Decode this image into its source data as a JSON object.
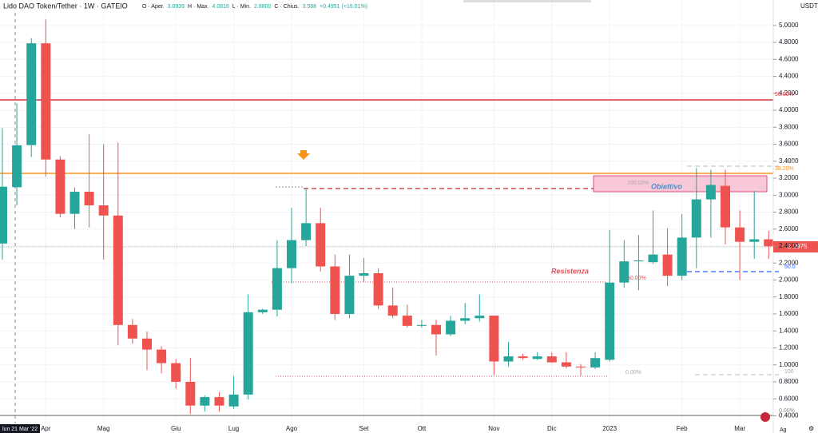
{
  "chart_data": {
    "type": "candlestick",
    "title": "Lido DAO Token/Tether · 1W · GATEIO",
    "header": {
      "open_label": "O · Aper.",
      "high_label": "H · Max.",
      "low_label": "L · Min.",
      "low_value_label": "2.8800",
      "close_label": "C · Chius.",
      "change": "+0.4951 (+16.01%)"
    },
    "y_unit": "USDT",
    "cursor_label": "lun 21 Mar '22",
    "up_color": "#26a69a",
    "down_color": "#ef5350",
    "categories": [
      null,
      null,
      null,
      "Apr",
      null,
      null,
      null,
      "Mag",
      null,
      null,
      null,
      null,
      "Giu",
      null,
      null,
      null,
      "Lug",
      null,
      null,
      null,
      "Ago",
      null,
      null,
      null,
      null,
      "Set",
      null,
      null,
      null,
      "Ott",
      null,
      null,
      null,
      null,
      "Nov",
      null,
      null,
      null,
      "Dic",
      null,
      null,
      null,
      "2023",
      null,
      null,
      null,
      null,
      "Feb",
      null,
      null,
      null,
      "Mar",
      null,
      null
    ],
    "open": [
      2.43,
      3.0939,
      3.59,
      4.79,
      3.42,
      2.78,
      3.04,
      2.88,
      2.76,
      1.47,
      1.31,
      1.18,
      1.02,
      0.8,
      0.52,
      0.62,
      0.51,
      0.65,
      1.62,
      1.65,
      2.14,
      2.47,
      2.67,
      2.16,
      1.6,
      2.05,
      2.08,
      1.7,
      1.58,
      1.46,
      1.47,
      1.36,
      1.52,
      1.55,
      1.58,
      1.04,
      1.1,
      1.07,
      1.1,
      1.03,
      0.98,
      0.97,
      1.06,
      1.97,
      2.22,
      2.21,
      2.3,
      2.05,
      2.5,
      2.95,
      3.11,
      2.62,
      2.45,
      2.48
    ],
    "high": [
      3.79,
      4.0816,
      4.85,
      5.07,
      3.46,
      3.09,
      3.72,
      3.6,
      3.62,
      1.54,
      1.39,
      1.22,
      1.07,
      1.08,
      0.64,
      0.68,
      0.87,
      1.83,
      1.66,
      2.47,
      2.85,
      3.09,
      2.85,
      2.3,
      2.3,
      2.26,
      2.14,
      1.91,
      1.71,
      1.53,
      1.53,
      1.58,
      1.73,
      1.83,
      1.58,
      1.27,
      1.13,
      1.15,
      1.15,
      1.15,
      1.01,
      1.15,
      2.59,
      2.47,
      2.53,
      2.82,
      2.61,
      2.78,
      3.32,
      3.3,
      3.3,
      2.82,
      3.05,
      2.58
    ],
    "low": [
      2.24,
      2.88,
      3.45,
      3.22,
      2.74,
      2.6,
      2.62,
      2.24,
      1.23,
      1.25,
      0.94,
      0.9,
      0.72,
      0.42,
      0.45,
      0.45,
      0.48,
      0.59,
      1.6,
      1.57,
      1.96,
      2.4,
      2.1,
      1.53,
      1.55,
      1.98,
      1.66,
      1.55,
      1.44,
      1.44,
      1.11,
      1.34,
      1.48,
      1.51,
      0.88,
      0.98,
      1.06,
      1.06,
      1.02,
      0.96,
      0.87,
      0.95,
      1.04,
      1.91,
      1.88,
      2.19,
      1.93,
      2.0,
      2.14,
      2.5,
      2.42,
      2.0,
      2.25,
      2.25
    ],
    "close": [
      3.1,
      3.588,
      4.79,
      3.42,
      2.78,
      3.04,
      2.88,
      2.76,
      1.47,
      1.31,
      1.18,
      1.02,
      0.8,
      0.52,
      0.62,
      0.52,
      0.65,
      1.62,
      1.65,
      2.14,
      2.47,
      2.67,
      2.16,
      1.6,
      2.05,
      2.08,
      1.7,
      1.58,
      1.46,
      1.47,
      1.36,
      1.52,
      1.55,
      1.58,
      1.04,
      1.1,
      1.08,
      1.1,
      1.03,
      0.98,
      0.97,
      1.08,
      1.97,
      2.22,
      2.23,
      2.3,
      2.05,
      2.5,
      2.95,
      3.12,
      2.62,
      2.45,
      2.48,
      2.3975
    ],
    "ylim": [
      0.31,
      5.3
    ],
    "yticks": [
      {
        "value": 0.4,
        "label": "0.4000"
      },
      {
        "value": 0.6,
        "label": "0.6000"
      },
      {
        "value": 0.8,
        "label": "0.8000"
      },
      {
        "value": 1.0,
        "label": "1.0000"
      },
      {
        "value": 1.2,
        "label": "1.2000"
      },
      {
        "value": 1.4,
        "label": "1.4000"
      },
      {
        "value": 1.6,
        "label": "1.6000"
      },
      {
        "value": 1.8,
        "label": "1.8000"
      },
      {
        "value": 2.0,
        "label": "2.0000"
      },
      {
        "value": 2.2,
        "label": "2.2000"
      },
      {
        "value": 2.4,
        "label": "2.4000"
      },
      {
        "value": 2.6,
        "label": "2.6000"
      },
      {
        "value": 2.8,
        "label": "2.8000"
      },
      {
        "value": 3.0,
        "label": "3.0000"
      },
      {
        "value": 3.2,
        "label": "3.2000"
      },
      {
        "value": 3.4,
        "label": "3.4000"
      },
      {
        "value": 3.6,
        "label": "3.6000"
      },
      {
        "value": 3.8,
        "label": "3.8000"
      },
      {
        "value": 4.0,
        "label": "4.0000"
      },
      {
        "value": 4.2,
        "label": "4.2000"
      },
      {
        "value": 4.4,
        "label": "4.4000"
      },
      {
        "value": 4.6,
        "label": "4.6000"
      },
      {
        "value": 4.8,
        "label": "4.8000"
      },
      {
        "value": 5.0,
        "label": "5.0000"
      }
    ],
    "grid": true,
    "annotations": [
      "50.00%",
      "38.20%",
      "0.00",
      "100.00%",
      "Obiettivo",
      "Resistenza",
      "50.0",
      "50.00%",
      "0.00%",
      "100",
      "0.00%",
      "Ag"
    ]
  }
}
